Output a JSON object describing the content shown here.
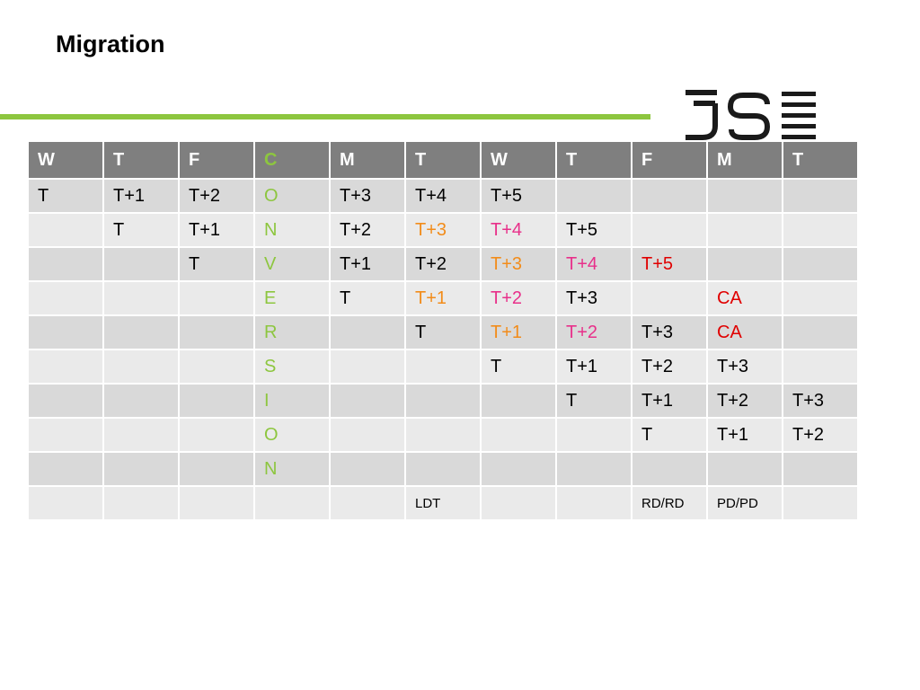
{
  "title": "Migration",
  "colors": {
    "header_bg": "#7f7f7f",
    "row_dark": "#d9d9d9",
    "row_light": "#eaeaea",
    "accent_green": "#8dc63f",
    "orange": "#f28c1a",
    "magenta": "#e8308a",
    "red": "#e00000"
  },
  "logo": {
    "icon": "jse-logo"
  },
  "headers": [
    "W",
    "T",
    "F",
    "C",
    "M",
    "T",
    "W",
    "T",
    "F",
    "M",
    "T"
  ],
  "rows": [
    [
      {
        "t": "T"
      },
      {
        "t": "T+1"
      },
      {
        "t": "T+2"
      },
      {
        "t": "O",
        "c": "green"
      },
      {
        "t": "T+3"
      },
      {
        "t": "T+4"
      },
      {
        "t": "T+5"
      },
      {
        "t": ""
      },
      {
        "t": ""
      },
      {
        "t": ""
      },
      {
        "t": ""
      }
    ],
    [
      {
        "t": ""
      },
      {
        "t": "T"
      },
      {
        "t": "T+1"
      },
      {
        "t": "N",
        "c": "green"
      },
      {
        "t": "T+2"
      },
      {
        "t": "T+3",
        "c": "orange"
      },
      {
        "t": "T+4",
        "c": "magenta"
      },
      {
        "t": "T+5"
      },
      {
        "t": ""
      },
      {
        "t": ""
      },
      {
        "t": ""
      }
    ],
    [
      {
        "t": ""
      },
      {
        "t": ""
      },
      {
        "t": "T"
      },
      {
        "t": "V",
        "c": "green"
      },
      {
        "t": "T+1"
      },
      {
        "t": "T+2"
      },
      {
        "t": "T+3",
        "c": "orange"
      },
      {
        "t": "T+4",
        "c": "magenta"
      },
      {
        "t": "T+5",
        "c": "red"
      },
      {
        "t": ""
      },
      {
        "t": ""
      }
    ],
    [
      {
        "t": ""
      },
      {
        "t": ""
      },
      {
        "t": ""
      },
      {
        "t": "E",
        "c": "green"
      },
      {
        "t": "T"
      },
      {
        "t": "T+1",
        "c": "orange"
      },
      {
        "t": "T+2",
        "c": "magenta"
      },
      {
        "t": "T+3"
      },
      {
        "t": ""
      },
      {
        "t": "CA",
        "c": "red"
      },
      {
        "t": ""
      }
    ],
    [
      {
        "t": ""
      },
      {
        "t": ""
      },
      {
        "t": ""
      },
      {
        "t": "R",
        "c": "green"
      },
      {
        "t": ""
      },
      {
        "t": "T"
      },
      {
        "t": "T+1",
        "c": "orange"
      },
      {
        "t": "T+2",
        "c": "magenta"
      },
      {
        "t": "T+3"
      },
      {
        "t": "CA",
        "c": "red"
      },
      {
        "t": ""
      }
    ],
    [
      {
        "t": ""
      },
      {
        "t": ""
      },
      {
        "t": ""
      },
      {
        "t": "S",
        "c": "green"
      },
      {
        "t": ""
      },
      {
        "t": ""
      },
      {
        "t": "T"
      },
      {
        "t": "T+1"
      },
      {
        "t": "T+2"
      },
      {
        "t": "T+3"
      },
      {
        "t": ""
      }
    ],
    [
      {
        "t": ""
      },
      {
        "t": ""
      },
      {
        "t": ""
      },
      {
        "t": "I",
        "c": "green"
      },
      {
        "t": ""
      },
      {
        "t": ""
      },
      {
        "t": ""
      },
      {
        "t": "T"
      },
      {
        "t": "T+1"
      },
      {
        "t": "T+2"
      },
      {
        "t": "T+3"
      }
    ],
    [
      {
        "t": ""
      },
      {
        "t": ""
      },
      {
        "t": ""
      },
      {
        "t": "O",
        "c": "green"
      },
      {
        "t": ""
      },
      {
        "t": ""
      },
      {
        "t": ""
      },
      {
        "t": ""
      },
      {
        "t": "T"
      },
      {
        "t": "T+1"
      },
      {
        "t": "T+2"
      }
    ],
    [
      {
        "t": ""
      },
      {
        "t": ""
      },
      {
        "t": ""
      },
      {
        "t": "N",
        "c": "green"
      },
      {
        "t": ""
      },
      {
        "t": ""
      },
      {
        "t": ""
      },
      {
        "t": ""
      },
      {
        "t": ""
      },
      {
        "t": ""
      },
      {
        "t": ""
      }
    ],
    [
      {
        "t": ""
      },
      {
        "t": ""
      },
      {
        "t": ""
      },
      {
        "t": ""
      },
      {
        "t": ""
      },
      {
        "t": "LDT",
        "small": true
      },
      {
        "t": ""
      },
      {
        "t": ""
      },
      {
        "t": "RD/RD",
        "small": true
      },
      {
        "t": "PD/PD",
        "small": true
      },
      {
        "t": ""
      }
    ]
  ]
}
